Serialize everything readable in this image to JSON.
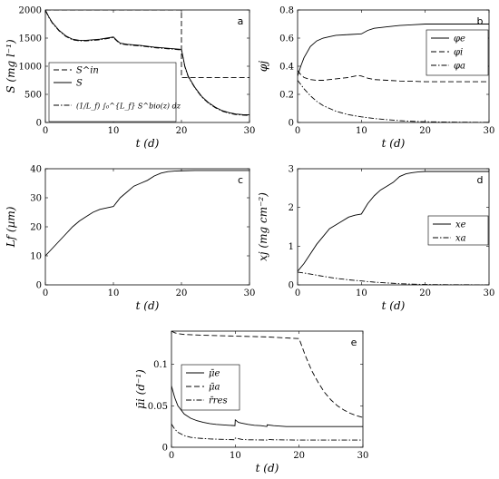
{
  "chart_data": [
    {
      "panel": "a",
      "type": "line",
      "xlabel": "t (d)",
      "ylabel": "S (mg l⁻¹)",
      "xlim": [
        0,
        30
      ],
      "ylim": [
        0,
        2000
      ],
      "xticks": [
        "0",
        "10",
        "20",
        "30"
      ],
      "yticks": [
        "0",
        "500",
        "1000",
        "1500",
        "2000"
      ],
      "legend_position": "bottom-left",
      "series": [
        {
          "name": "S^in",
          "style": "dashed",
          "x": [
            0,
            20,
            20,
            30
          ],
          "y": [
            2000,
            2000,
            800,
            800
          ]
        },
        {
          "name": "S",
          "style": "solid",
          "x": [
            0,
            0.5,
            1,
            2,
            3,
            4,
            5,
            6,
            7,
            8,
            9,
            10,
            10.5,
            11,
            12,
            14,
            16,
            18,
            20,
            20.5,
            21,
            22,
            23,
            24,
            25,
            26,
            27,
            28,
            29,
            30
          ],
          "y": [
            2000,
            1880,
            1780,
            1640,
            1540,
            1480,
            1460,
            1460,
            1470,
            1480,
            1500,
            1520,
            1460,
            1410,
            1390,
            1370,
            1340,
            1320,
            1300,
            1000,
            820,
            620,
            460,
            350,
            270,
            210,
            175,
            150,
            140,
            135
          ]
        },
        {
          "name": "(1/L_f) ∫₀^{L_f} S^bio(z) dz",
          "style": "dashdot",
          "x": [
            0,
            0.5,
            1,
            2,
            3,
            4,
            5,
            6,
            7,
            8,
            9,
            10,
            10.5,
            11,
            12,
            14,
            16,
            18,
            20,
            20.5,
            21,
            22,
            23,
            24,
            25,
            26,
            27,
            28,
            29,
            30
          ],
          "y": [
            1990,
            1870,
            1770,
            1630,
            1530,
            1470,
            1450,
            1450,
            1460,
            1470,
            1490,
            1510,
            1450,
            1400,
            1380,
            1360,
            1330,
            1310,
            1290,
            990,
            810,
            610,
            450,
            340,
            260,
            200,
            165,
            140,
            130,
            125
          ]
        }
      ]
    },
    {
      "panel": "b",
      "type": "line",
      "xlabel": "t (d)",
      "ylabel": "φj",
      "xlim": [
        0,
        30
      ],
      "ylim": [
        0,
        0.8
      ],
      "xticks": [
        "0",
        "10",
        "20",
        "30"
      ],
      "yticks": [
        "0",
        "0.2",
        "0.4",
        "0.6",
        "0.8"
      ],
      "legend_position": "right",
      "series": [
        {
          "name": "φe",
          "style": "solid",
          "x": [
            0,
            0.5,
            1,
            2,
            3,
            4,
            5,
            6,
            8,
            10,
            11,
            12,
            14,
            16,
            18,
            20,
            22,
            25,
            30
          ],
          "y": [
            0.33,
            0.4,
            0.46,
            0.54,
            0.58,
            0.6,
            0.61,
            0.62,
            0.625,
            0.63,
            0.655,
            0.67,
            0.68,
            0.69,
            0.695,
            0.7,
            0.7,
            0.7,
            0.7
          ]
        },
        {
          "name": "φi",
          "style": "dashed",
          "x": [
            0,
            0.5,
            1,
            2,
            3,
            4,
            5,
            6,
            8,
            9.5,
            10,
            11,
            12,
            14,
            16,
            18,
            20,
            25,
            30
          ],
          "y": [
            0.37,
            0.34,
            0.32,
            0.305,
            0.3,
            0.3,
            0.305,
            0.31,
            0.32,
            0.335,
            0.33,
            0.315,
            0.305,
            0.3,
            0.295,
            0.293,
            0.29,
            0.29,
            0.29
          ]
        },
        {
          "name": "φa",
          "style": "dashdot",
          "x": [
            0,
            1,
            2,
            3,
            4,
            5,
            6,
            8,
            10,
            12,
            14,
            16,
            18,
            20,
            25,
            30
          ],
          "y": [
            0.3,
            0.24,
            0.19,
            0.15,
            0.12,
            0.1,
            0.08,
            0.055,
            0.04,
            0.028,
            0.02,
            0.013,
            0.008,
            0.005,
            0.002,
            0.001
          ]
        }
      ]
    },
    {
      "panel": "c",
      "type": "line",
      "xlabel": "t (d)",
      "ylabel": "Lf (µm)",
      "xlim": [
        0,
        30
      ],
      "ylim": [
        0,
        40
      ],
      "xticks": [
        "0",
        "10",
        "20",
        "30"
      ],
      "yticks": [
        "0",
        "10",
        "20",
        "30",
        "40"
      ],
      "series": [
        {
          "name": "",
          "style": "solid",
          "x": [
            0,
            1,
            2,
            3,
            4,
            5,
            6,
            7,
            8,
            9,
            10,
            11,
            12,
            13,
            14,
            15,
            16,
            17,
            18,
            19,
            20,
            22,
            25,
            30
          ],
          "y": [
            10,
            12.5,
            15,
            17.5,
            20,
            22,
            23.5,
            25,
            26,
            26.5,
            27,
            30,
            32,
            34,
            35,
            36,
            37.5,
            38.5,
            39,
            39.2,
            39.3,
            39.4,
            39.4,
            39.4
          ]
        }
      ]
    },
    {
      "panel": "d",
      "type": "line",
      "xlabel": "t (d)",
      "ylabel": "xj (mg cm⁻²)",
      "xlim": [
        0,
        30
      ],
      "ylim": [
        0,
        3
      ],
      "xticks": [
        "0",
        "10",
        "20",
        "30"
      ],
      "yticks": [
        "0",
        "1",
        "2",
        "3"
      ],
      "legend_position": "right",
      "series": [
        {
          "name": "xe",
          "style": "solid",
          "x": [
            0,
            1,
            2,
            3,
            4,
            5,
            6,
            7,
            8,
            9,
            10,
            11,
            12,
            13,
            14,
            15,
            16,
            17,
            18,
            19,
            20,
            22,
            25,
            30
          ],
          "y": [
            0.35,
            0.55,
            0.8,
            1.05,
            1.25,
            1.45,
            1.55,
            1.65,
            1.75,
            1.8,
            1.83,
            2.1,
            2.3,
            2.45,
            2.55,
            2.65,
            2.8,
            2.87,
            2.9,
            2.92,
            2.93,
            2.93,
            2.93,
            2.93
          ]
        },
        {
          "name": "xa",
          "style": "dashdot",
          "x": [
            0,
            2,
            4,
            6,
            8,
            10,
            12,
            14,
            16,
            18,
            20,
            25,
            30
          ],
          "y": [
            0.33,
            0.28,
            0.22,
            0.17,
            0.13,
            0.1,
            0.07,
            0.05,
            0.03,
            0.02,
            0.01,
            0.003,
            0.002
          ]
        }
      ]
    },
    {
      "panel": "e",
      "type": "line",
      "xlabel": "t (d)",
      "ylabel": "μ̄i (d⁻¹)",
      "xlim": [
        0,
        30
      ],
      "ylim": [
        0,
        0.14
      ],
      "xticks": [
        "0",
        "10",
        "20",
        "30"
      ],
      "yticks": [
        "0",
        "0.05",
        "0.1"
      ],
      "legend_position": "top-left",
      "series": [
        {
          "name": "μ̄e",
          "style": "solid",
          "x": [
            0,
            0.5,
            1,
            2,
            3,
            4,
            5,
            6,
            7,
            8,
            9,
            9.95,
            10,
            10.5,
            11,
            12,
            13,
            14,
            14.95,
            15,
            16,
            18,
            20,
            25,
            30
          ],
          "y": [
            0.074,
            0.06,
            0.05,
            0.04,
            0.035,
            0.032,
            0.03,
            0.0285,
            0.0275,
            0.027,
            0.0265,
            0.026,
            0.033,
            0.03,
            0.029,
            0.0275,
            0.0265,
            0.026,
            0.025,
            0.027,
            0.026,
            0.025,
            0.025,
            0.025,
            0.025
          ]
        },
        {
          "name": "μ̄a",
          "style": "dashed",
          "x": [
            0,
            0.5,
            1,
            2,
            5,
            10,
            15,
            20,
            21,
            22,
            23,
            24,
            25,
            26,
            27,
            28,
            29,
            30
          ],
          "y": [
            0.14,
            0.138,
            0.137,
            0.136,
            0.135,
            0.134,
            0.133,
            0.131,
            0.11,
            0.092,
            0.078,
            0.066,
            0.057,
            0.05,
            0.045,
            0.041,
            0.038,
            0.036
          ]
        },
        {
          "name": "r̄res",
          "style": "dashdot",
          "x": [
            0,
            0.5,
            1,
            2,
            3,
            4,
            5,
            6,
            8,
            9.95,
            10,
            11,
            12,
            14,
            14.95,
            15,
            16,
            18,
            20,
            25,
            30
          ],
          "y": [
            0.028,
            0.022,
            0.018,
            0.014,
            0.012,
            0.011,
            0.0105,
            0.01,
            0.0095,
            0.009,
            0.011,
            0.0095,
            0.009,
            0.0088,
            0.0087,
            0.0095,
            0.009,
            0.0088,
            0.0087,
            0.0087,
            0.0087
          ]
        }
      ]
    }
  ]
}
